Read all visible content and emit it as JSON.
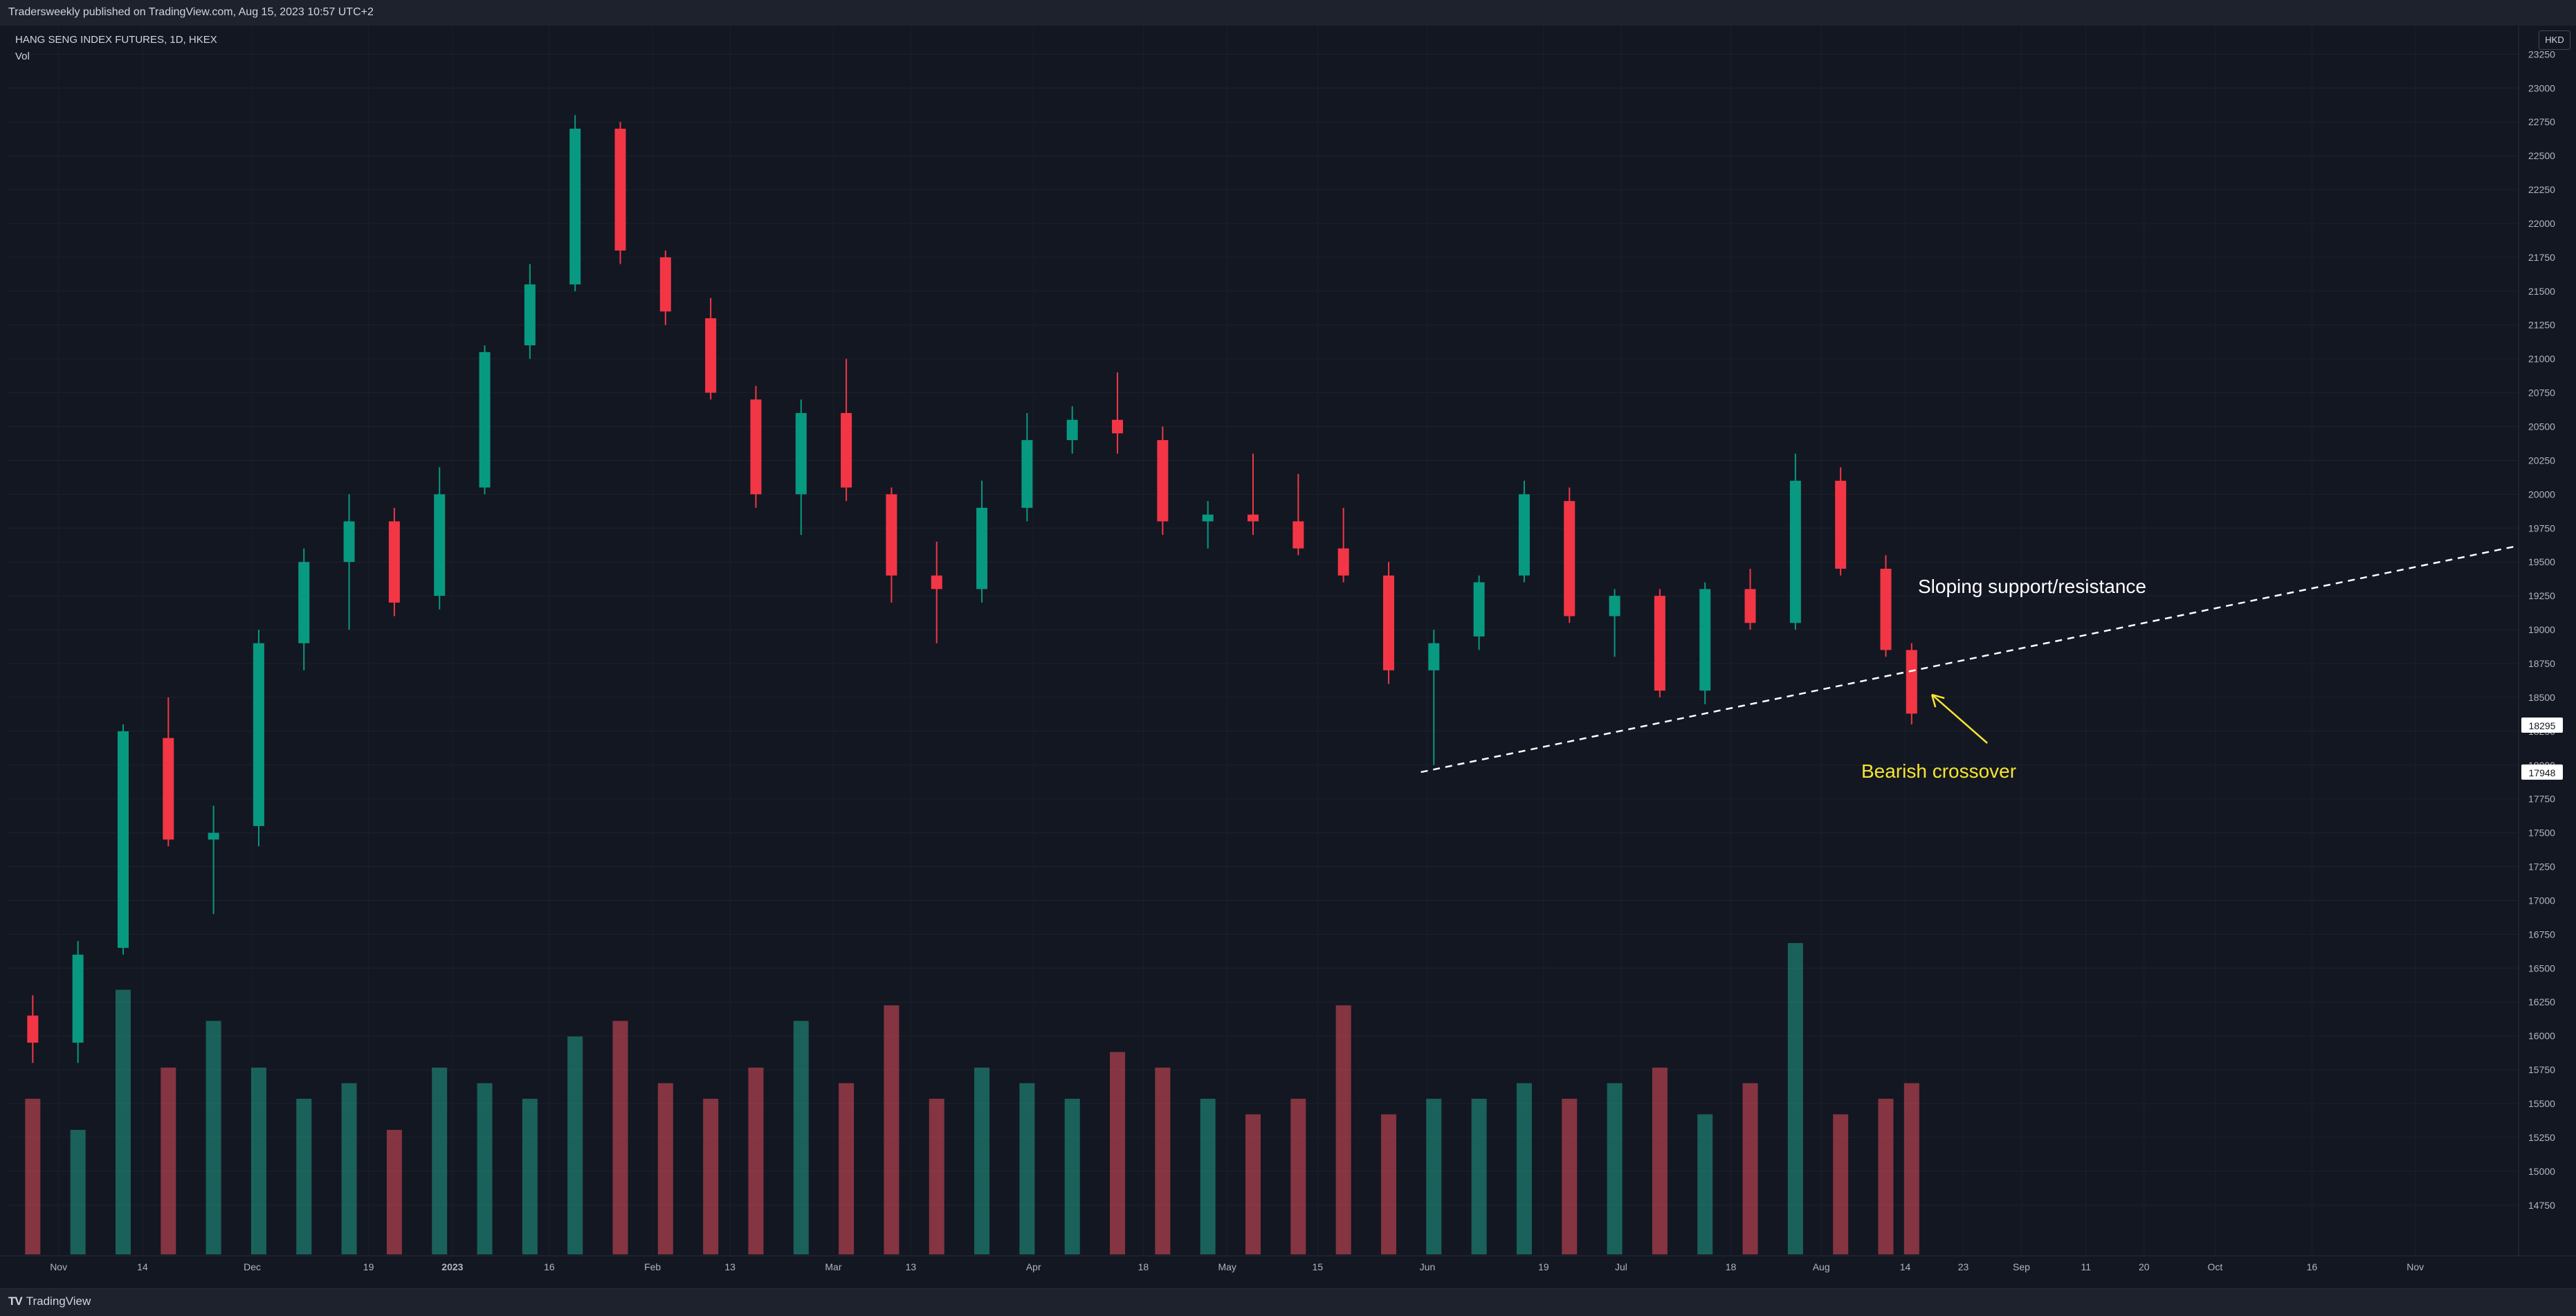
{
  "header": {
    "published": "Tradersweekly published on TradingView.com, Aug 15, 2023 10:57 UTC+2"
  },
  "legend": {
    "symbol": "HANG SENG INDEX FUTURES, 1D, HKEX",
    "volume": "Vol"
  },
  "footer": {
    "brand": "TradingView",
    "brand_icon": "tradingview-logo"
  },
  "colors": {
    "background": "#131722",
    "up": "#089981",
    "down": "#f23645",
    "vol_up": "#22ab94",
    "vol_down": "#f7525f",
    "annotation": "#ffffff",
    "highlight": "#f7e52f"
  },
  "chart_data": {
    "type": "candlestick",
    "instrument": "HANG SENG INDEX FUTURES",
    "interval": "1D",
    "exchange": "HKEX",
    "currency": "HKD",
    "y_axis": {
      "ticks": [
        "14750",
        "15000",
        "15250",
        "15500",
        "15750",
        "16000",
        "16250",
        "16500",
        "16750",
        "17000",
        "17250",
        "17500",
        "17750",
        "18000",
        "18250",
        "18500",
        "18750",
        "19000",
        "19250",
        "19500",
        "19750",
        "20000",
        "20250",
        "20500",
        "20750",
        "21000",
        "21250",
        "21500",
        "21750",
        "22000",
        "22250",
        "22500",
        "22750",
        "23000",
        "23250"
      ],
      "range": [
        14570,
        23400
      ]
    },
    "price_labels": [
      {
        "text": "18295",
        "value": 18295
      },
      {
        "text": "17948",
        "value": 17948
      }
    ],
    "x_axis": {
      "ticks": [
        "Nov",
        "14",
        "Dec",
        "19",
        "2023",
        "16",
        "Feb",
        "13",
        "Mar",
        "13",
        "Apr",
        "18",
        "May",
        "15",
        "Jun",
        "19",
        "Jul",
        "18",
        "Aug",
        "14",
        "23",
        "Sep",
        "11",
        "Sep",
        "20",
        "Oct",
        "16",
        "Nov"
      ],
      "range": [
        "2022-10-24",
        "2023-11-17"
      ]
    },
    "candles": [
      {
        "date": "2022-10-28",
        "open": 16150,
        "high": 16300,
        "low": 15800,
        "close": 15950
      },
      {
        "date": "2022-11-04",
        "open": 15950,
        "high": 16700,
        "low": 15800,
        "close": 16600
      },
      {
        "date": "2022-11-11",
        "open": 16650,
        "high": 18300,
        "low": 16600,
        "close": 18250
      },
      {
        "date": "2022-11-18",
        "open": 18200,
        "high": 18500,
        "low": 17400,
        "close": 17450
      },
      {
        "date": "2022-11-25",
        "open": 17450,
        "high": 17700,
        "low": 16900,
        "close": 17500
      },
      {
        "date": "2022-12-02",
        "open": 17550,
        "high": 19000,
        "low": 17400,
        "close": 18900
      },
      {
        "date": "2022-12-09",
        "open": 18900,
        "high": 19600,
        "low": 18700,
        "close": 19500
      },
      {
        "date": "2022-12-16",
        "open": 19500,
        "high": 20000,
        "low": 19000,
        "close": 19800
      },
      {
        "date": "2022-12-23",
        "open": 19800,
        "high": 19900,
        "low": 19100,
        "close": 19200
      },
      {
        "date": "2022-12-30",
        "open": 19250,
        "high": 20200,
        "low": 19150,
        "close": 20000
      },
      {
        "date": "2023-01-06",
        "open": 20050,
        "high": 21100,
        "low": 20000,
        "close": 21050
      },
      {
        "date": "2023-01-13",
        "open": 21100,
        "high": 21700,
        "low": 21000,
        "close": 21550
      },
      {
        "date": "2023-01-20",
        "open": 21550,
        "high": 22800,
        "low": 21500,
        "close": 22700
      },
      {
        "date": "2023-01-27",
        "open": 22700,
        "high": 22750,
        "low": 21700,
        "close": 21800
      },
      {
        "date": "2023-02-03",
        "open": 21750,
        "high": 21800,
        "low": 21250,
        "close": 21350
      },
      {
        "date": "2023-02-10",
        "open": 21300,
        "high": 21450,
        "low": 20700,
        "close": 20750
      },
      {
        "date": "2023-02-17",
        "open": 20700,
        "high": 20800,
        "low": 19900,
        "close": 20000
      },
      {
        "date": "2023-02-24",
        "open": 20000,
        "high": 20700,
        "low": 19700,
        "close": 20600
      },
      {
        "date": "2023-03-03",
        "open": 20600,
        "high": 21000,
        "low": 19950,
        "close": 20050
      },
      {
        "date": "2023-03-10",
        "open": 20000,
        "high": 20050,
        "low": 19200,
        "close": 19400
      },
      {
        "date": "2023-03-17",
        "open": 19400,
        "high": 19650,
        "low": 18900,
        "close": 19300
      },
      {
        "date": "2023-03-24",
        "open": 19300,
        "high": 20100,
        "low": 19200,
        "close": 19900
      },
      {
        "date": "2023-03-31",
        "open": 19900,
        "high": 20600,
        "low": 19800,
        "close": 20400
      },
      {
        "date": "2023-04-07",
        "open": 20400,
        "high": 20650,
        "low": 20300,
        "close": 20550
      },
      {
        "date": "2023-04-14",
        "open": 20550,
        "high": 20900,
        "low": 20300,
        "close": 20450
      },
      {
        "date": "2023-04-21",
        "open": 20400,
        "high": 20500,
        "low": 19700,
        "close": 19800
      },
      {
        "date": "2023-04-28",
        "open": 19800,
        "high": 19950,
        "low": 19600,
        "close": 19850
      },
      {
        "date": "2023-05-05",
        "open": 19850,
        "high": 20300,
        "low": 19700,
        "close": 19800
      },
      {
        "date": "2023-05-12",
        "open": 19800,
        "high": 20150,
        "low": 19550,
        "close": 19600
      },
      {
        "date": "2023-05-19",
        "open": 19600,
        "high": 19900,
        "low": 19350,
        "close": 19400
      },
      {
        "date": "2023-05-26",
        "open": 19400,
        "high": 19500,
        "low": 18600,
        "close": 18700
      },
      {
        "date": "2023-06-02",
        "open": 18700,
        "high": 19000,
        "low": 18000,
        "close": 18900
      },
      {
        "date": "2023-06-09",
        "open": 18950,
        "high": 19400,
        "low": 18850,
        "close": 19350
      },
      {
        "date": "2023-06-16",
        "open": 19400,
        "high": 20100,
        "low": 19350,
        "close": 20000
      },
      {
        "date": "2023-06-23",
        "open": 19950,
        "high": 20050,
        "low": 19050,
        "close": 19100
      },
      {
        "date": "2023-06-30",
        "open": 19100,
        "high": 19300,
        "low": 18800,
        "close": 19250
      },
      {
        "date": "2023-07-07",
        "open": 19250,
        "high": 19300,
        "low": 18500,
        "close": 18550
      },
      {
        "date": "2023-07-14",
        "open": 18550,
        "high": 19350,
        "low": 18450,
        "close": 19300
      },
      {
        "date": "2023-07-21",
        "open": 19300,
        "high": 19450,
        "low": 19000,
        "close": 19050
      },
      {
        "date": "2023-07-28",
        "open": 19050,
        "high": 20300,
        "low": 19000,
        "close": 20100
      },
      {
        "date": "2023-08-04",
        "open": 20100,
        "high": 20200,
        "low": 19400,
        "close": 19450
      },
      {
        "date": "2023-08-11",
        "open": 19450,
        "high": 19550,
        "low": 18800,
        "close": 18850
      },
      {
        "date": "2023-08-15",
        "open": 18850,
        "high": 18900,
        "low": 18300,
        "close": 18380
      }
    ],
    "volume": [
      0.5,
      0.4,
      0.85,
      0.6,
      0.75,
      0.6,
      0.5,
      0.55,
      0.4,
      0.6,
      0.55,
      0.5,
      0.7,
      0.75,
      0.55,
      0.5,
      0.6,
      0.75,
      0.55,
      0.8,
      0.5,
      0.6,
      0.55,
      0.5,
      0.65,
      0.6,
      0.5,
      0.45,
      0.5,
      0.8,
      0.45,
      0.5,
      0.5,
      0.55,
      0.5,
      0.55,
      0.6,
      0.45,
      0.55,
      1.0,
      0.45,
      0.5,
      0.55
    ],
    "trendline": {
      "label": "Sloping support/resistance",
      "start": {
        "date": "2023-05-31",
        "value": 17948
      },
      "end": {
        "date": "2023-11-17",
        "value": 19620
      }
    },
    "annotations": [
      {
        "text": "Bearish crossover",
        "date": "2023-08-16",
        "value": 18520
      }
    ]
  }
}
